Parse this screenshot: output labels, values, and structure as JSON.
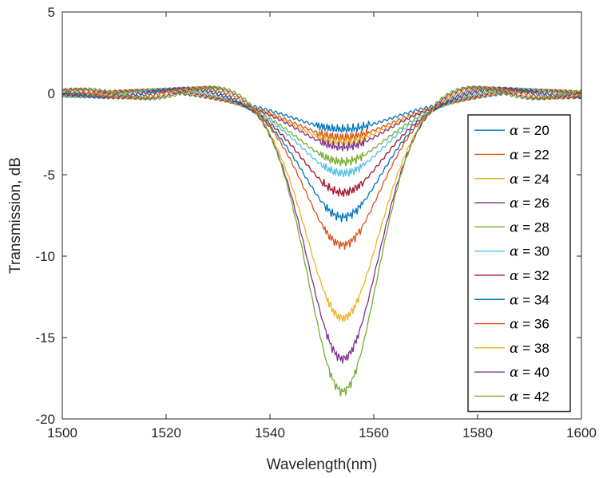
{
  "chart_data": {
    "type": "line",
    "title": "",
    "xlabel": "Wavelength(nm)",
    "ylabel": "Transmission, dB",
    "xlim": [
      1500,
      1600
    ],
    "ylim": [
      -20,
      5
    ],
    "xticks": [
      1500,
      1520,
      1540,
      1560,
      1580,
      1600
    ],
    "yticks": [
      -20,
      -15,
      -10,
      -5,
      0,
      5
    ],
    "grid": false,
    "legend_position": "right",
    "center_wavelength": 1554,
    "series": [
      {
        "name": "α = 20",
        "color": "#0072BD",
        "min_db": -2.2,
        "width_nm": 26,
        "side_lobe_db": 0.3
      },
      {
        "name": "α = 22",
        "color": "#D95319",
        "min_db": -2.7,
        "width_nm": 25,
        "side_lobe_db": 0.35
      },
      {
        "name": "α = 24",
        "color": "#EDB120",
        "min_db": -3.0,
        "width_nm": 24,
        "side_lobe_db": 0.4
      },
      {
        "name": "α = 26",
        "color": "#7E2F8E",
        "min_db": -3.3,
        "width_nm": 23,
        "side_lobe_db": 0.4
      },
      {
        "name": "α = 28",
        "color": "#77AC30",
        "min_db": -4.2,
        "width_nm": 22,
        "side_lobe_db": 0.45
      },
      {
        "name": "α = 30",
        "color": "#4DBEEE",
        "min_db": -4.9,
        "width_nm": 21,
        "side_lobe_db": 0.5
      },
      {
        "name": "α = 32",
        "color": "#A2142F",
        "min_db": -6.1,
        "width_nm": 20,
        "side_lobe_db": 0.5
      },
      {
        "name": "α = 34",
        "color": "#0072BD",
        "min_db": -7.6,
        "width_nm": 19,
        "side_lobe_db": 0.55
      },
      {
        "name": "α = 36",
        "color": "#D95319",
        "min_db": -9.3,
        "width_nm": 18,
        "side_lobe_db": 0.55
      },
      {
        "name": "α = 38",
        "color": "#EDB120",
        "min_db": -13.8,
        "width_nm": 17,
        "side_lobe_db": 0.6
      },
      {
        "name": "α = 40",
        "color": "#7E2F8E",
        "min_db": -16.3,
        "width_nm": 16.5,
        "side_lobe_db": 0.6
      },
      {
        "name": "α = 42",
        "color": "#77AC30",
        "min_db": -18.3,
        "width_nm": 16,
        "side_lobe_db": 0.6
      }
    ]
  }
}
